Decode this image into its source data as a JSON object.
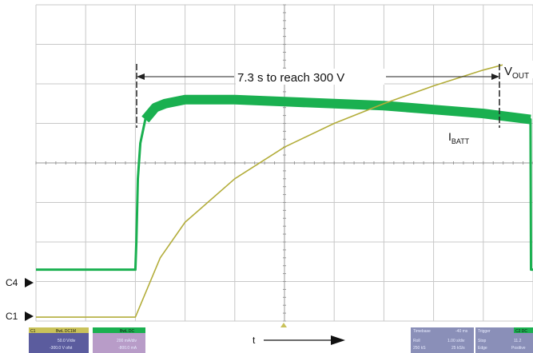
{
  "chart_data": {
    "type": "line",
    "title": "",
    "xlabel": "t",
    "ylabel": "",
    "grid": true,
    "annotations": {
      "main": "7.3 s to reach 300 V",
      "vout_main": "V",
      "vout_sub": "OUT",
      "ibatt_main": "I",
      "ibatt_sub": "BATT"
    },
    "channel_labels": {
      "c4": "C4",
      "c1": "C1"
    },
    "x_units": "divisions",
    "xlim": [
      0,
      10
    ],
    "ylim": [
      0,
      8
    ],
    "series": [
      {
        "name": "",
        "channel": "C1",
        "color": "#b3ad3a",
        "x": [
          0,
          2,
          2.0,
          2.5,
          3,
          4,
          5,
          6,
          7,
          8,
          9,
          9.6,
          10
        ],
        "y": [
          0.1,
          0.1,
          0.1,
          1.6,
          2.5,
          3.6,
          4.4,
          5.0,
          5.5,
          5.95,
          6.35,
          6.55,
          6.45
        ]
      },
      {
        "name": "",
        "channel": "C4",
        "color": "#1ab050",
        "x": [
          0,
          2,
          2.02,
          2.05,
          2.1,
          2.2,
          2.4,
          2.6,
          3,
          4,
          5,
          6,
          7,
          8,
          9,
          9.95,
          9.96,
          10
        ],
        "y": [
          1.3,
          1.3,
          2.0,
          3.6,
          4.5,
          5.1,
          5.4,
          5.5,
          5.6,
          5.6,
          5.55,
          5.5,
          5.45,
          5.35,
          5.25,
          5.1,
          1.3,
          1.3
        ]
      }
    ]
  },
  "status_bar": {
    "c1": {
      "tag": "C1",
      "mode": "BwL DC1M",
      "scale": "50.0 V/div",
      "offset": "-300.0 V ofst"
    },
    "c4": {
      "mode": "BwL DC",
      "scale": "200 mA/div",
      "offset": "-800.0 mA"
    },
    "timebase": {
      "label": "Timebase",
      "delay": "-40 ms",
      "mode": "Roll",
      "tdiv": "1.00 s/div",
      "samples": "250 kS",
      "rate": "25 kS/s"
    },
    "trigger": {
      "label": "Trigger",
      "tag": "C2 DC",
      "state": "Stop",
      "level": "11.2",
      "edge": "Edge",
      "slope": "Positive"
    }
  }
}
